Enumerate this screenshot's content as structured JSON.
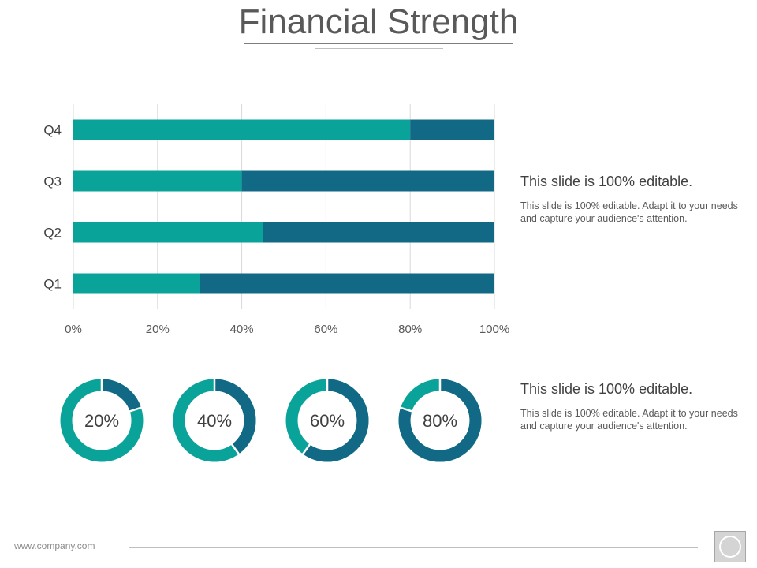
{
  "title": "Financial Strength",
  "colors": {
    "primary": "#0aa39a",
    "secondary": "#116985",
    "grid": "#d9d9d9"
  },
  "chart_data": [
    {
      "type": "bar",
      "orientation": "horizontal",
      "stacked": true,
      "categories": [
        "Q4",
        "Q3",
        "Q2",
        "Q1"
      ],
      "series": [
        {
          "values": [
            80,
            40,
            45,
            30
          ]
        },
        {
          "values": [
            20,
            60,
            55,
            70
          ]
        }
      ],
      "xlim": [
        0,
        100
      ],
      "x_ticks": [
        "0%",
        "20%",
        "40%",
        "60%",
        "80%",
        "100%"
      ],
      "grid": true,
      "title": "",
      "xlabel": "",
      "ylabel": ""
    },
    {
      "type": "pie",
      "style": "donut",
      "charts": [
        {
          "label": "20%",
          "value": 20
        },
        {
          "label": "40%",
          "value": 40
        },
        {
          "label": "60%",
          "value": 60
        },
        {
          "label": "80%",
          "value": 80
        }
      ]
    }
  ],
  "text_blocks": [
    {
      "heading": "This slide is 100% editable.",
      "body": "This slide is 100% editable. Adapt it to your needs and capture your audience's attention."
    },
    {
      "heading": "This slide is 100% editable.",
      "body": "This slide is 100% editable. Adapt it to your needs and capture your audience's attention."
    }
  ],
  "footer": {
    "url": "www.company.com",
    "logo_icon": "logo-ring-icon"
  }
}
